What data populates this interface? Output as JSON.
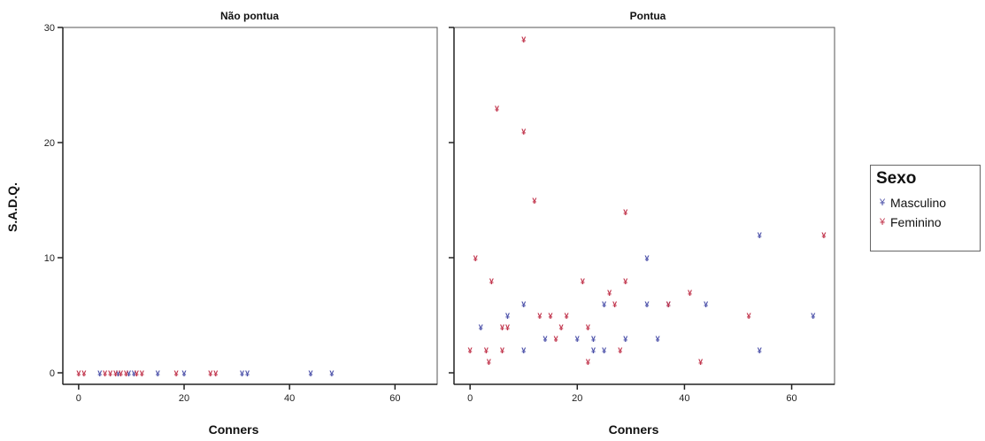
{
  "chart_data": {
    "type": "scatter",
    "ylabel": "S.A.D.Q.",
    "xlabel": "Conners",
    "xlim": [
      -3,
      68
    ],
    "ylim": [
      -1,
      30
    ],
    "x_ticks": [
      0,
      20,
      40,
      60
    ],
    "y_ticks": [
      0,
      10,
      20,
      30
    ],
    "legend": {
      "title": "Sexo",
      "placement": "right",
      "entries": [
        {
          "name": "Masculino",
          "color": "#4a4fa8"
        },
        {
          "name": "Feminino",
          "color": "#c0324a"
        }
      ]
    },
    "panels": [
      {
        "title": "Não pontua",
        "series": [
          {
            "name": "Masculino",
            "points": [
              [
                4,
                0
              ],
              [
                7.5,
                0
              ],
              [
                9.5,
                0
              ],
              [
                10.5,
                0
              ],
              [
                15,
                0
              ],
              [
                20,
                0
              ],
              [
                31,
                0
              ],
              [
                32,
                0
              ],
              [
                44,
                0
              ],
              [
                48,
                0
              ]
            ]
          },
          {
            "name": "Feminino",
            "points": [
              [
                0,
                0
              ],
              [
                1,
                0
              ],
              [
                5,
                0
              ],
              [
                6,
                0
              ],
              [
                7,
                0
              ],
              [
                8,
                0
              ],
              [
                9,
                0
              ],
              [
                11,
                0
              ],
              [
                12,
                0
              ],
              [
                18.5,
                0
              ],
              [
                25,
                0
              ],
              [
                26,
                0
              ]
            ]
          }
        ]
      },
      {
        "title": "Pontua",
        "series": [
          {
            "name": "Masculino",
            "points": [
              [
                2,
                4
              ],
              [
                7,
                5
              ],
              [
                10,
                2
              ],
              [
                10,
                6
              ],
              [
                14,
                3
              ],
              [
                20,
                3
              ],
              [
                23,
                3
              ],
              [
                23,
                2
              ],
              [
                25,
                2
              ],
              [
                25,
                6
              ],
              [
                29,
                3
              ],
              [
                33,
                10
              ],
              [
                33,
                6
              ],
              [
                35,
                3
              ],
              [
                37,
                6
              ],
              [
                44,
                6
              ],
              [
                54,
                12
              ],
              [
                54,
                2
              ],
              [
                64,
                5
              ]
            ]
          },
          {
            "name": "Feminino",
            "points": [
              [
                0,
                2
              ],
              [
                1,
                10
              ],
              [
                3,
                2
              ],
              [
                3.5,
                1
              ],
              [
                4,
                8
              ],
              [
                5,
                23
              ],
              [
                6,
                2
              ],
              [
                6,
                4
              ],
              [
                7,
                4
              ],
              [
                10,
                29
              ],
              [
                10,
                21
              ],
              [
                12,
                15
              ],
              [
                13,
                5
              ],
              [
                15,
                5
              ],
              [
                16,
                3
              ],
              [
                17,
                4
              ],
              [
                18,
                5
              ],
              [
                21,
                8
              ],
              [
                22,
                1
              ],
              [
                22,
                4
              ],
              [
                26,
                7
              ],
              [
                27,
                6
              ],
              [
                28,
                2
              ],
              [
                29,
                14
              ],
              [
                29,
                8
              ],
              [
                37,
                6
              ],
              [
                41,
                7
              ],
              [
                43,
                1
              ],
              [
                52,
                5
              ],
              [
                66,
                12
              ]
            ]
          }
        ]
      }
    ]
  }
}
